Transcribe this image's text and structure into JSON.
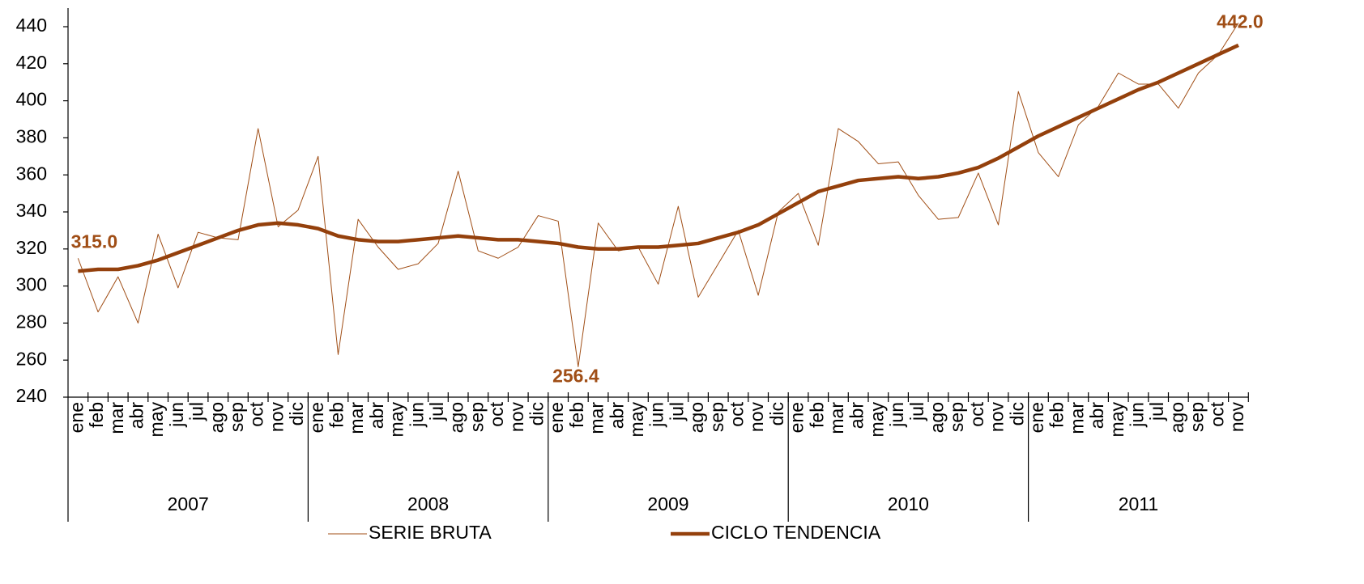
{
  "chart_data": {
    "type": "line",
    "groups": [
      {
        "label": "2007",
        "categories": [
          "ene",
          "feb",
          "mar",
          "abr",
          "may",
          "jun",
          "jul",
          "ago",
          "sep",
          "oct",
          "nov",
          "dic"
        ]
      },
      {
        "label": "2008",
        "categories": [
          "ene",
          "feb",
          "mar",
          "abr",
          "may",
          "jun",
          "jul",
          "ago",
          "sep",
          "oct",
          "nov",
          "dic"
        ]
      },
      {
        "label": "2009",
        "categories": [
          "ene",
          "feb",
          "mar",
          "abr",
          "may",
          "jun",
          "jul",
          "ago",
          "sep",
          "oct",
          "nov",
          "dic"
        ]
      },
      {
        "label": "2010",
        "categories": [
          "ene",
          "feb",
          "mar",
          "abr",
          "may",
          "jun",
          "jul",
          "ago",
          "sep",
          "oct",
          "nov",
          "dic"
        ]
      },
      {
        "label": "2011",
        "categories": [
          "ene",
          "feb",
          "mar",
          "abr",
          "may",
          "jun",
          "jul",
          "ago",
          "sep",
          "oct",
          "nov"
        ]
      }
    ],
    "series": [
      {
        "name": "SERIE BRUTA",
        "color": "#a04e16",
        "width": 1,
        "values": [
          315,
          286,
          305,
          280,
          328,
          299,
          329,
          326,
          325,
          385,
          332,
          341,
          370,
          263,
          336,
          321,
          309,
          312,
          323,
          362,
          319,
          315,
          321,
          338,
          335,
          256.4,
          334,
          319,
          321,
          301,
          343,
          294,
          312,
          330,
          295,
          340,
          350,
          322,
          385,
          378,
          366,
          367,
          349,
          336,
          337,
          361,
          333,
          405,
          372,
          359,
          387,
          397,
          415,
          409,
          409,
          396,
          415,
          425,
          442
        ],
        "value_labels": [
          "315.0",
          null,
          null,
          null,
          null,
          null,
          null,
          null,
          null,
          null,
          null,
          null,
          null,
          null,
          null,
          null,
          null,
          null,
          null,
          null,
          null,
          null,
          null,
          null,
          null,
          "256.4",
          null,
          null,
          null,
          null,
          null,
          null,
          null,
          null,
          null,
          null,
          null,
          null,
          null,
          null,
          null,
          null,
          null,
          null,
          null,
          null,
          null,
          null,
          null,
          null,
          null,
          null,
          null,
          null,
          null,
          null,
          null,
          null,
          "442.0"
        ]
      },
      {
        "name": "CICLO TENDENCIA",
        "color": "#94400c",
        "width": 4.5,
        "values": [
          308,
          309,
          309,
          311,
          314,
          318,
          322,
          326,
          330,
          333,
          334,
          333,
          331,
          327,
          325,
          324,
          324,
          325,
          326,
          327,
          326,
          325,
          325,
          324,
          323,
          321,
          320,
          320,
          321,
          321,
          322,
          323,
          326,
          329,
          333,
          339,
          345,
          351,
          354,
          357,
          358,
          359,
          358,
          359,
          361,
          364,
          369,
          375,
          381,
          386,
          391,
          396,
          401,
          406,
          410,
          415,
          420,
          425,
          430
        ]
      }
    ],
    "label_color": "#a04e16",
    "ylim": [
      240,
      440
    ],
    "yticks": [
      240,
      260,
      280,
      300,
      320,
      340,
      360,
      380,
      400,
      420,
      440
    ]
  }
}
